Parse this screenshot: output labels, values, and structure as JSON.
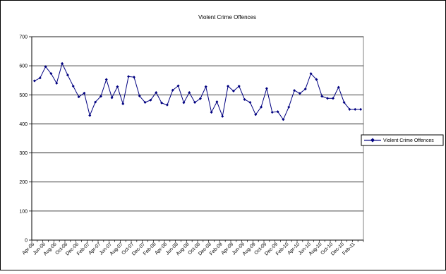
{
  "chart_data": {
    "type": "line",
    "title": "Violent Crime Offences",
    "xlabel": "",
    "ylabel": "",
    "ylim": [
      0,
      700
    ],
    "yticks": [
      0,
      100,
      200,
      300,
      400,
      500,
      600,
      700
    ],
    "grid": true,
    "legend_position": "right",
    "x": [
      "Apr-06",
      "May-06",
      "Jun-06",
      "Jul-06",
      "Aug-06",
      "Sep-06",
      "Oct-06",
      "Nov-06",
      "Dec-06",
      "Jan-07",
      "Feb-07",
      "Mar-07",
      "Apr-07",
      "May-07",
      "Jun-07",
      "Jul-07",
      "Aug-07",
      "Sep-07",
      "Oct-07",
      "Nov-07",
      "Dec-07",
      "Jan-08",
      "Feb-08",
      "Mar-08",
      "Apr-08",
      "May-08",
      "Jun-08",
      "Jul-08",
      "Aug-08",
      "Sep-08",
      "Oct-08",
      "Nov-08",
      "Dec-08",
      "Jan-09",
      "Feb-09",
      "Mar-09",
      "Apr-09",
      "May-09",
      "Jun-09",
      "Jul-09",
      "Aug-09",
      "Sep-09",
      "Oct-09",
      "Nov-09",
      "Dec-09",
      "Jan-10",
      "Feb-10",
      "Mar-10",
      "Apr-10",
      "May-10",
      "Jun-10",
      "Jul-10",
      "Aug-10",
      "Sep-10",
      "Oct-10",
      "Nov-10",
      "Dec-10",
      "Jan-11",
      "Feb-11",
      "Mar-11"
    ],
    "tick_labels": [
      "Apr-06",
      "Jun-06",
      "Aug-06",
      "Oct-06",
      "Dec-06",
      "Feb-07",
      "Apr-07",
      "Jun-07",
      "Aug-07",
      "Oct-07",
      "Dec-07",
      "Feb-08",
      "Apr-08",
      "Jun-08",
      "Aug-08",
      "Oct-08",
      "Dec-08",
      "Feb-09",
      "Apr-09",
      "Jun-09",
      "Aug-09",
      "Oct-09",
      "Dec-09",
      "Feb-10",
      "Apr-10",
      "Jun-10",
      "Aug-10",
      "Oct-10",
      "Dec-10",
      "Feb-11"
    ],
    "series": [
      {
        "name": "Violent Crime Offences",
        "color": "#000080",
        "values": [
          548,
          558,
          597,
          573,
          540,
          608,
          568,
          530,
          493,
          506,
          429,
          475,
          495,
          553,
          490,
          528,
          469,
          563,
          561,
          496,
          474,
          482,
          508,
          472,
          465,
          516,
          531,
          473,
          508,
          474,
          487,
          528,
          440,
          476,
          426,
          530,
          513,
          530,
          484,
          474,
          432,
          458,
          522,
          440,
          442,
          415,
          458,
          515,
          505,
          520,
          573,
          553,
          495,
          488,
          488,
          526,
          474,
          450,
          450,
          450
        ]
      }
    ]
  }
}
